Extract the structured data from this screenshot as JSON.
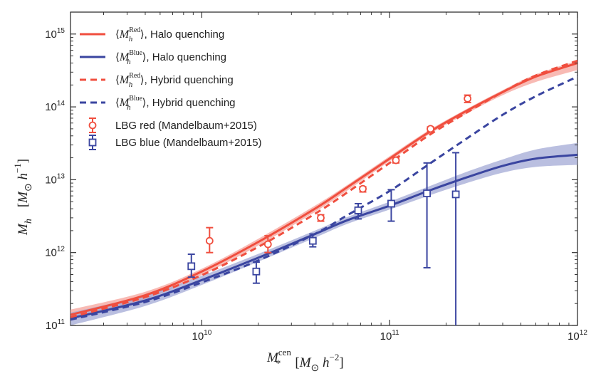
{
  "chart_data": {
    "type": "line",
    "xscale": "log",
    "yscale": "log",
    "xlim": [
      2000000000.0,
      1000000000000.0
    ],
    "ylim": [
      100000000000.0,
      2000000000000000.0
    ],
    "x_ticks": [
      {
        "value": 10000000000.0,
        "base": "10",
        "exp": "10"
      },
      {
        "value": 100000000000.0,
        "base": "10",
        "exp": "11"
      },
      {
        "value": 1000000000000.0,
        "base": "10",
        "exp": "12"
      }
    ],
    "y_ticks": [
      {
        "value": 100000000000.0,
        "base": "10",
        "exp": "11"
      },
      {
        "value": 1000000000000.0,
        "base": "10",
        "exp": "12"
      },
      {
        "value": 10000000000000.0,
        "base": "10",
        "exp": "13"
      },
      {
        "value": 100000000000000.0,
        "base": "10",
        "exp": "14"
      },
      {
        "value": 1000000000000000.0,
        "base": "10",
        "exp": "15"
      }
    ],
    "xlabel": {
      "symbol": "M",
      "sub": "*",
      "sup": "cen",
      "units": "[M",
      "units_sub": "⊙",
      "units_tail": " h",
      "units_exp": "−2",
      "close": "]"
    },
    "ylabel": {
      "symbol": "M",
      "sub": "h",
      "units": "[M",
      "units_sub": "⊙",
      "units_tail": " h",
      "units_exp": "−1",
      "close": "]"
    },
    "colors": {
      "red": "#f04e3e",
      "blue": "#3a45a0",
      "red_band": "#f5a39b",
      "blue_band": "#a3a9d6"
    },
    "series": [
      {
        "name": "red-halo",
        "color": "red",
        "dash": false,
        "legend": {
          "prefix": "⟨M",
          "sub": "h",
          "sup": "Red",
          "suffix": "⟩, Halo quenching"
        },
        "x": [
          2000000000.0,
          5000000000.0,
          10000000000.0,
          20000000000.0,
          40000000000.0,
          60000000000.0,
          100000000000.0,
          160000000000.0,
          250000000000.0,
          400000000000.0,
          600000000000.0,
          1000000000000.0
        ],
        "y": [
          140000000000.0,
          260000000000.0,
          550000000000.0,
          1400000000000.0,
          4000000000000.0,
          8000000000000.0,
          19500000000000.0,
          44000000000000.0,
          85000000000000.0,
          160000000000000.0,
          260000000000000.0,
          400000000000000.0
        ],
        "band_lo": [
          120000000000.0,
          230000000000.0,
          490000000000.0,
          1250000000000.0,
          3600000000000.0,
          7200000000000.0,
          18000000000000.0,
          41000000000000.0,
          78000000000000.0,
          145000000000000.0,
          220000000000000.0,
          320000000000000.0
        ],
        "band_hi": [
          165000000000.0,
          290000000000.0,
          600000000000.0,
          1550000000000.0,
          4400000000000.0,
          8600000000000.0,
          21000000000000.0,
          47000000000000.0,
          90000000000000.0,
          170000000000000.0,
          280000000000000.0,
          430000000000000.0
        ]
      },
      {
        "name": "blue-halo",
        "color": "blue",
        "dash": false,
        "legend": {
          "prefix": "⟨M",
          "sub": "h",
          "sup": "Blue",
          "suffix": "⟩, Halo quenching"
        },
        "x": [
          2000000000.0,
          5000000000.0,
          10000000000.0,
          20000000000.0,
          40000000000.0,
          60000000000.0,
          100000000000.0,
          160000000000.0,
          250000000000.0,
          400000000000.0,
          600000000000.0,
          1000000000000.0
        ],
        "y": [
          125000000000.0,
          220000000000.0,
          420000000000.0,
          850000000000.0,
          1800000000000.0,
          2800000000000.0,
          4400000000000.0,
          7000000000000.0,
          10500000000000.0,
          15500000000000.0,
          19500000000000.0,
          22000000000000.0
        ],
        "band_lo": [
          100000000000.0,
          185000000000.0,
          360000000000.0,
          750000000000.0,
          1600000000000.0,
          2500000000000.0,
          3900000000000.0,
          6000000000000.0,
          8800000000000.0,
          12500000000000.0,
          15000000000000.0,
          16000000000000.0
        ],
        "band_hi": [
          150000000000.0,
          260000000000.0,
          480000000000.0,
          960000000000.0,
          2000000000000.0,
          3100000000000.0,
          5000000000000.0,
          8000000000000.0,
          12500000000000.0,
          19000000000000.0,
          26000000000000.0,
          32000000000000.0
        ]
      },
      {
        "name": "red-hybrid",
        "color": "red",
        "dash": true,
        "legend": {
          "prefix": "⟨M",
          "sub": "h",
          "sup": "Red",
          "suffix": "⟩, Hybrid quenching"
        },
        "x": [
          2000000000.0,
          5000000000.0,
          10000000000.0,
          20000000000.0,
          40000000000.0,
          60000000000.0,
          100000000000.0,
          160000000000.0,
          250000000000.0,
          400000000000.0,
          600000000000.0,
          1000000000000.0
        ],
        "y": [
          130000000000.0,
          245000000000.0,
          490000000000.0,
          1200000000000.0,
          3400000000000.0,
          6800000000000.0,
          17000000000000.0,
          40000000000000.0,
          80000000000000.0,
          160000000000000.0,
          270000000000000.0,
          430000000000000.0
        ]
      },
      {
        "name": "blue-hybrid",
        "color": "blue",
        "dash": true,
        "legend": {
          "prefix": "⟨M",
          "sub": "h",
          "sup": "Blue",
          "suffix": "⟩, Hybrid quenching"
        },
        "x": [
          2000000000.0,
          5000000000.0,
          10000000000.0,
          20000000000.0,
          40000000000.0,
          60000000000.0,
          100000000000.0,
          160000000000.0,
          250000000000.0,
          400000000000.0,
          600000000000.0,
          1000000000000.0
        ],
        "y": [
          120000000000.0,
          210000000000.0,
          390000000000.0,
          780000000000.0,
          1800000000000.0,
          3300000000000.0,
          7000000000000.0,
          16000000000000.0,
          35000000000000.0,
          78000000000000.0,
          140000000000000.0,
          260000000000000.0
        ]
      }
    ],
    "points": [
      {
        "name": "lbg-red",
        "color": "red",
        "marker": "circle",
        "legend": "LBG red (Mandelbaum+2015)",
        "x": [
          11000000000.0,
          22500000000.0,
          43000000000.0,
          72000000000.0,
          108000000000.0,
          165000000000.0,
          260000000000.0
        ],
        "y": [
          1450000000000.0,
          1300000000000.0,
          3000000000000.0,
          7500000000000.0,
          18500000000000.0,
          50000000000000.0,
          130000000000000.0
        ],
        "yerr_lo": [
          1000000000000.0,
          1000000000000.0,
          2700000000000.0,
          6800000000000.0,
          17000000000000.0,
          46000000000000.0,
          115000000000000.0
        ],
        "yerr_hi": [
          2200000000000.0,
          1700000000000.0,
          3300000000000.0,
          8000000000000.0,
          20000000000000.0,
          53000000000000.0,
          145000000000000.0
        ]
      },
      {
        "name": "lbg-blue",
        "color": "blue",
        "marker": "square",
        "legend": "LBG blue (Mandelbaum+2015)",
        "x": [
          8800000000.0,
          19500000000.0,
          39000000000.0,
          68000000000.0,
          102000000000.0,
          158000000000.0,
          225000000000.0
        ],
        "y": [
          650000000000.0,
          550000000000.0,
          1450000000000.0,
          3800000000000.0,
          4700000000000.0,
          6500000000000.0,
          6300000000000.0
        ],
        "yerr_lo": [
          460000000000.0,
          380000000000.0,
          1200000000000.0,
          2900000000000.0,
          2700000000000.0,
          620000000000.0,
          100000000000.0
        ],
        "yerr_hi": [
          950000000000.0,
          740000000000.0,
          1800000000000.0,
          4700000000000.0,
          7300000000000.0,
          17000000000000.0,
          23500000000000.0
        ]
      }
    ]
  }
}
